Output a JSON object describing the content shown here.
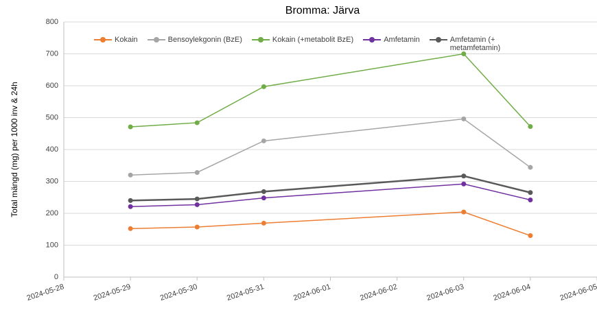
{
  "chart_data": {
    "type": "line",
    "title": "Bromma: Järva",
    "y_label": "Total mängd (mg) per 1000 inv & 24h",
    "x": [
      "2024-05-29",
      "2024-05-30",
      "2024-05-31",
      "2024-06-03",
      "2024-06-04"
    ],
    "series": [
      {
        "name": "Kokain",
        "color": "#ed7d31",
        "values": [
          152,
          157,
          169,
          204,
          130
        ]
      },
      {
        "name": "Bensoylekgonin (BzE)",
        "color": "#a5a5a5",
        "values": [
          320,
          328,
          427,
          496,
          344
        ]
      },
      {
        "name": "Kokain (+metabolit BzE)",
        "color": "#70ad47",
        "values": [
          471,
          484,
          597,
          700,
          472
        ]
      },
      {
        "name": "Amfetamin",
        "color": "#7030a0",
        "values": [
          221,
          227,
          248,
          292,
          242
        ]
      },
      {
        "name": "Amfetamin (+ metamfetamin)",
        "color": "#595959",
        "values": [
          240,
          245,
          268,
          317,
          265
        ]
      }
    ],
    "xlim": [
      "2024-05-28",
      "2024-06-05"
    ],
    "xticks": [
      "2024-05-28",
      "2024-05-29",
      "2024-05-30",
      "2024-05-31",
      "2024-06-01",
      "2024-06-02",
      "2024-06-03",
      "2024-06-04",
      "2024-06-05"
    ],
    "ylim": [
      0,
      800
    ],
    "yticks": [
      0,
      100,
      200,
      300,
      400,
      500,
      600,
      700,
      800
    ],
    "grid": true,
    "legend": "top"
  }
}
